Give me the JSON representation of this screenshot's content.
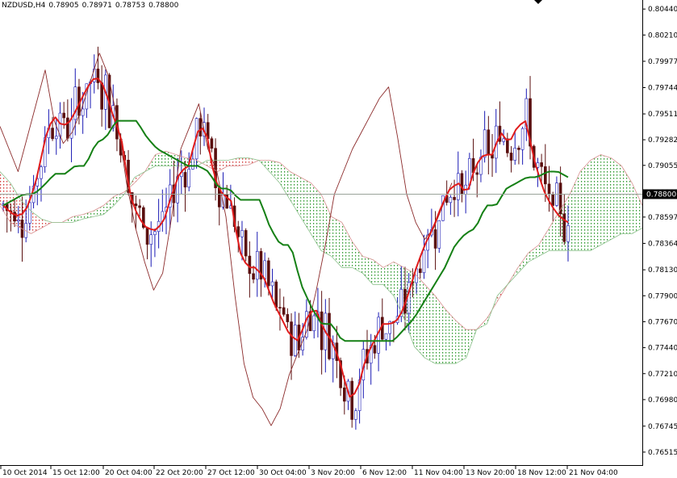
{
  "header": {
    "symbol": "NZDUSD,H4",
    "open": "0.78905",
    "high": "0.78971",
    "low": "0.78753",
    "close": "0.78800"
  },
  "chart_data": {
    "type": "candlestick",
    "symbol": "NZDUSD",
    "timeframe": "H4",
    "current_price": "0.78800",
    "ylim": [
      0.764,
      0.8052
    ],
    "y_ticks": [
      "0.80440",
      "0.80210",
      "0.79977",
      "0.79744",
      "0.79511",
      "0.79282",
      "0.79055",
      "0.78800",
      "0.78597",
      "0.78364",
      "0.78130",
      "0.77900",
      "0.77670",
      "0.77440",
      "0.77210",
      "0.76980",
      "0.76745",
      "0.76515"
    ],
    "x_ticks": [
      "10 Oct 2014",
      "15 Oct 12:00",
      "20 Oct 04:00",
      "22 Oct 20:00",
      "27 Oct 12:00",
      "30 Oct 04:00",
      "3 Nov 20:00",
      "6 Nov 12:00",
      "11 Nov 04:00",
      "13 Nov 20:00",
      "18 Nov 12:00",
      "21 Nov 04:00"
    ],
    "tenkan_sen": [
      0.787,
      0.7863,
      0.786,
      0.787,
      0.7895,
      0.793,
      0.795,
      0.794,
      0.7945,
      0.796,
      0.7975,
      0.7985,
      0.7975,
      0.795,
      0.793,
      0.788,
      0.786,
      0.785,
      0.7848,
      0.7855,
      0.788,
      0.79,
      0.7905,
      0.7935,
      0.794,
      0.7895,
      0.788,
      0.7875,
      0.783,
      0.7815,
      0.7815,
      0.7805,
      0.7785,
      0.777,
      0.7755,
      0.775,
      0.777,
      0.778,
      0.776,
      0.775,
      0.773,
      0.77,
      0.7705,
      0.7735,
      0.775,
      0.7765,
      0.7765,
      0.777,
      0.779,
      0.7815,
      0.7835,
      0.785,
      0.787,
      0.7885,
      0.789,
      0.788,
      0.7905,
      0.7915,
      0.7915,
      0.7935,
      0.7925,
      0.794,
      0.7945,
      0.791,
      0.7885,
      0.787,
      0.786,
      0.7855
    ],
    "kijun_sen": [
      0.787,
      0.7875,
      0.788,
      0.788,
      0.7888,
      0.7898,
      0.7898,
      0.7905,
      0.7905,
      0.7925,
      0.793,
      0.7945,
      0.7945,
      0.7945,
      0.793,
      0.792,
      0.7915,
      0.791,
      0.7905,
      0.7905,
      0.79,
      0.7885,
      0.7885,
      0.7875,
      0.7875,
      0.7875,
      0.785,
      0.7835,
      0.7835,
      0.78,
      0.778,
      0.7765,
      0.7765,
      0.775,
      0.775,
      0.775,
      0.775,
      0.775,
      0.775,
      0.776,
      0.777,
      0.7785,
      0.78,
      0.7815,
      0.7835,
      0.7845,
      0.785,
      0.787,
      0.787,
      0.7885,
      0.789,
      0.7895,
      0.7895,
      0.79,
      0.79,
      0.7895
    ],
    "senkou_span_a": [
      0.787,
      0.7855,
      0.785,
      0.7845,
      0.785,
      0.7855,
      0.7855,
      0.786,
      0.7862,
      0.7865,
      0.787,
      0.7878,
      0.7882,
      0.789,
      0.79,
      0.7915,
      0.7918,
      0.7915,
      0.7912,
      0.791,
      0.7905,
      0.79,
      0.7905,
      0.7905,
      0.7906,
      0.791,
      0.791,
      0.7908,
      0.79,
      0.7895,
      0.789,
      0.788,
      0.786,
      0.7855,
      0.7838,
      0.7825,
      0.7822,
      0.7815,
      0.782,
      0.7815,
      0.781,
      0.78,
      0.779,
      0.7778,
      0.7768,
      0.776,
      0.776,
      0.777,
      0.7785,
      0.78,
      0.7815,
      0.7828,
      0.7835,
      0.785,
      0.7865,
      0.788,
      0.79,
      0.791,
      0.7915,
      0.7912,
      0.7905,
      0.789,
      0.787
    ],
    "senkou_span_b": [
      0.79,
      0.789,
      0.7875,
      0.7865,
      0.7858,
      0.7855,
      0.7855,
      0.7855,
      0.7858,
      0.786,
      0.7862,
      0.787,
      0.788,
      0.7895,
      0.79,
      0.7905,
      0.7905,
      0.7905,
      0.7905,
      0.7905,
      0.791,
      0.791,
      0.791,
      0.7912,
      0.7912,
      0.791,
      0.79,
      0.789,
      0.7875,
      0.786,
      0.7845,
      0.783,
      0.7825,
      0.7815,
      0.7815,
      0.781,
      0.78,
      0.78,
      0.779,
      0.777,
      0.7745,
      0.7735,
      0.773,
      0.773,
      0.773,
      0.7735,
      0.776,
      0.7765,
      0.779,
      0.78,
      0.781,
      0.782,
      0.7825,
      0.783,
      0.783,
      0.783,
      0.783,
      0.783,
      0.7835,
      0.784,
      0.7845,
      0.7845,
      0.785
    ],
    "chikou_span": [
      0.794,
      0.792,
      0.79,
      0.793,
      0.796,
      0.799,
      0.7945,
      0.7925,
      0.7935,
      0.7955,
      0.798,
      0.8005,
      0.7985,
      0.7945,
      0.789,
      0.785,
      0.782,
      0.7795,
      0.781,
      0.786,
      0.792,
      0.794,
      0.796,
      0.792,
      0.79,
      0.786,
      0.779,
      0.773,
      0.77,
      0.769,
      0.7675,
      0.769,
      0.772,
      0.774,
      0.776,
      0.7795,
      0.7835,
      0.788,
      0.79,
      0.792,
      0.7935,
      0.795,
      0.7965,
      0.7975,
      0.793,
      0.788,
      0.7855,
      0.784,
      0.785,
      0.787,
      0.789
    ],
    "legend": "none",
    "grid": false
  }
}
